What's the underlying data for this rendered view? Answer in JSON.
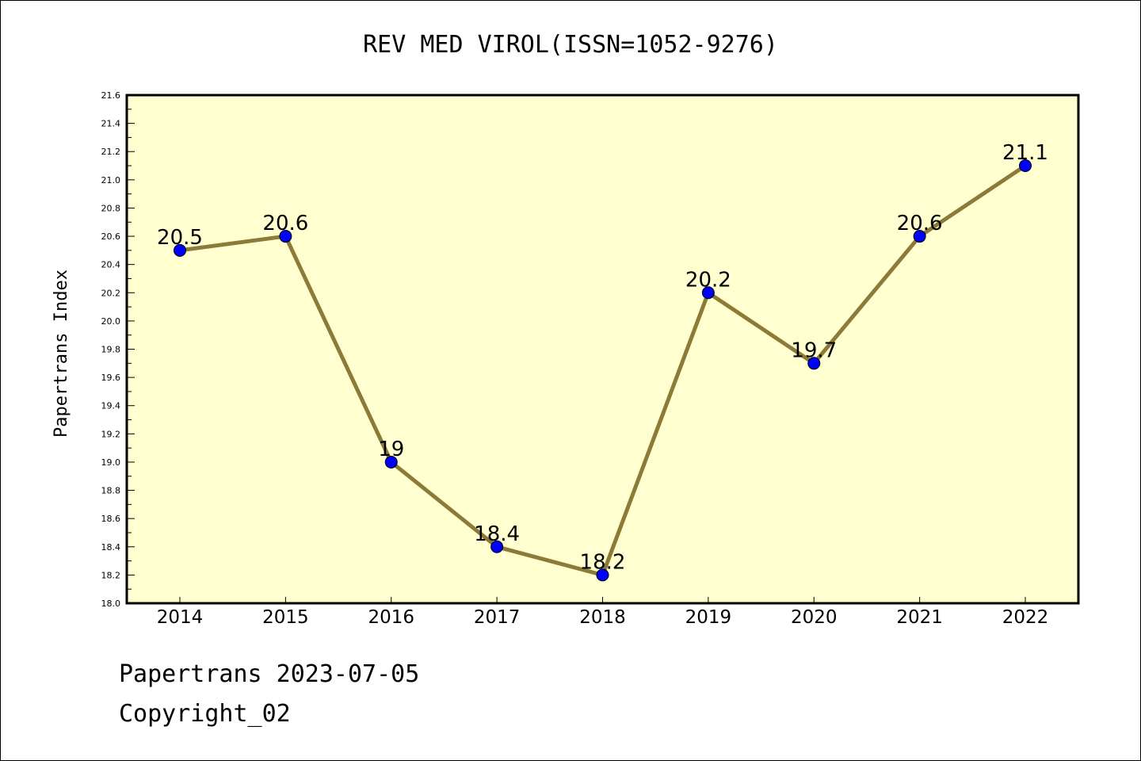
{
  "chart_data": {
    "type": "line",
    "title": "REV MED VIROL(ISSN=1052-9276)",
    "xlabel": "",
    "ylabel": "Papertrans Index",
    "categories": [
      "2014",
      "2015",
      "2016",
      "2017",
      "2018",
      "2019",
      "2020",
      "2021",
      "2022"
    ],
    "series": [
      {
        "values": [
          20.5,
          20.6,
          19.0,
          18.4,
          18.2,
          20.2,
          19.7,
          20.6,
          21.1
        ],
        "labels": [
          "20.5",
          "20.6",
          "19",
          "18.4",
          "18.2",
          "20.2",
          "19.7",
          "20.6",
          "21.1"
        ]
      }
    ],
    "ylim": [
      18.0,
      21.6
    ],
    "yticks": [
      "18.0",
      "18.2",
      "18.4",
      "18.6",
      "18.8",
      "19.0",
      "19.2",
      "19.4",
      "19.6",
      "19.8",
      "20.0",
      "20.2",
      "20.4",
      "20.6",
      "20.8",
      "21.0",
      "21.2",
      "21.4",
      "21.6"
    ],
    "grid": false,
    "colors": {
      "plot_bg": "#ffffd0",
      "line": "#8b7a38",
      "marker": "#0000ff"
    }
  },
  "footer": {
    "line1": "Papertrans 2023-07-05",
    "line2": "Copyright_02"
  }
}
